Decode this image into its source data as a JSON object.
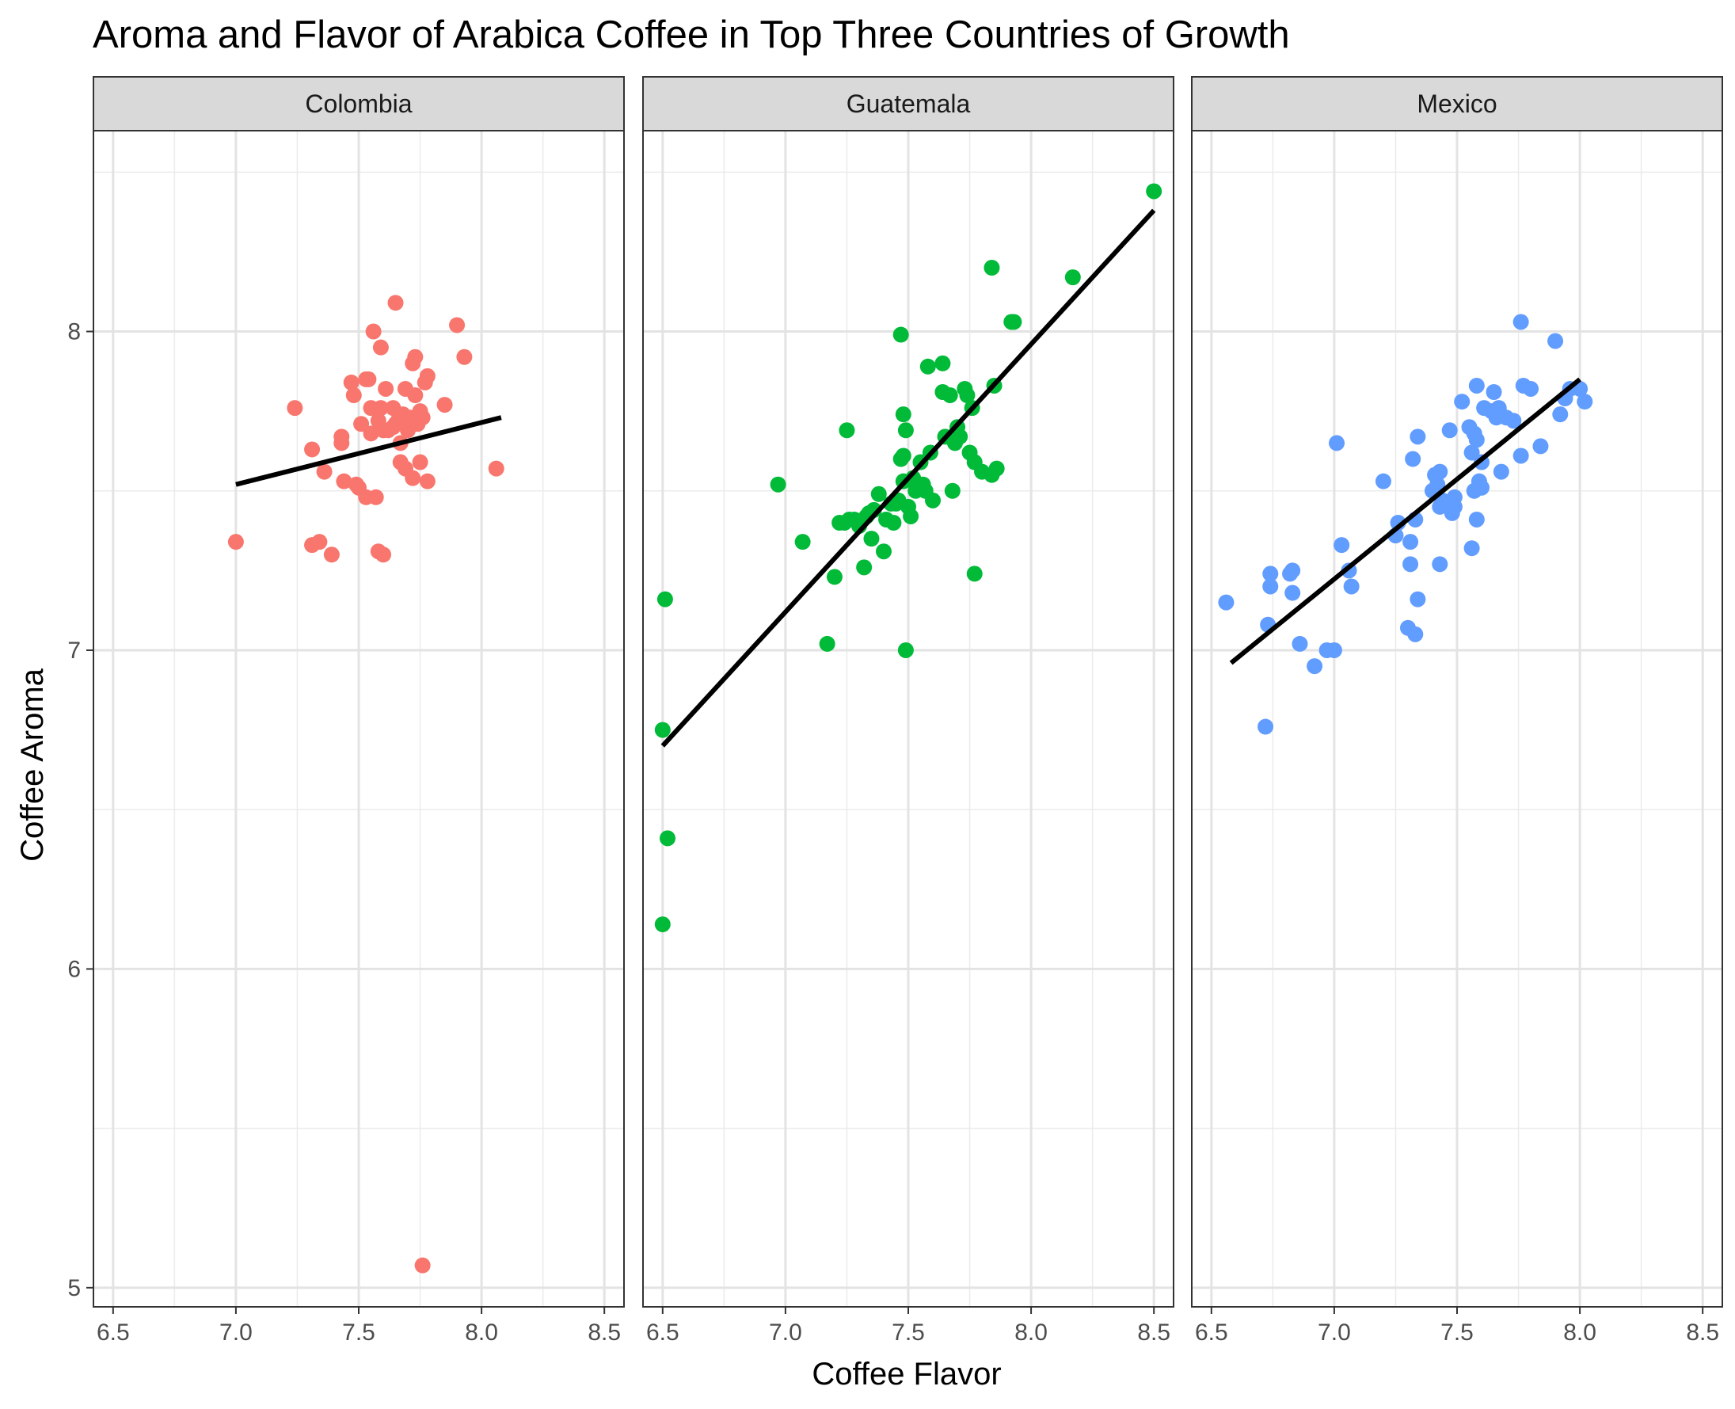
{
  "chart_data": {
    "type": "scatter",
    "title": "Aroma and Flavor of Arabica Coffee in Top Three Countries of Growth",
    "xlabel": "Coffee Flavor",
    "ylabel": "Coffee Aroma",
    "xlim": [
      6.42,
      8.58
    ],
    "ylim": [
      4.94,
      8.63
    ],
    "x_ticks": [
      "6.5",
      "7.0",
      "7.5",
      "8.0",
      "8.5"
    ],
    "y_ticks": [
      "5",
      "6",
      "7",
      "8"
    ],
    "grid": true,
    "legend": "none",
    "fit_line_color": "#000000",
    "facets": [
      {
        "name": "Colombia",
        "color": "#F8766D",
        "fit": {
          "x": [
            7.0,
            8.08
          ],
          "y": [
            7.52,
            7.73
          ]
        },
        "points": [
          [
            7.0,
            7.34
          ],
          [
            7.24,
            7.76
          ],
          [
            7.31,
            7.63
          ],
          [
            7.31,
            7.33
          ],
          [
            7.34,
            7.34
          ],
          [
            7.36,
            7.56
          ],
          [
            7.39,
            7.3
          ],
          [
            7.43,
            7.67
          ],
          [
            7.43,
            7.65
          ],
          [
            7.44,
            7.53
          ],
          [
            7.47,
            7.84
          ],
          [
            7.48,
            7.8
          ],
          [
            7.49,
            7.52
          ],
          [
            7.5,
            7.51
          ],
          [
            7.51,
            7.71
          ],
          [
            7.53,
            7.85
          ],
          [
            7.53,
            7.48
          ],
          [
            7.54,
            7.85
          ],
          [
            7.55,
            7.76
          ],
          [
            7.55,
            7.68
          ],
          [
            7.56,
            8.0
          ],
          [
            7.57,
            7.48
          ],
          [
            7.58,
            7.31
          ],
          [
            7.58,
            7.72
          ],
          [
            7.59,
            7.95
          ],
          [
            7.59,
            7.76
          ],
          [
            7.6,
            7.69
          ],
          [
            7.6,
            7.3
          ],
          [
            7.61,
            7.82
          ],
          [
            7.62,
            7.69
          ],
          [
            7.64,
            7.76
          ],
          [
            7.64,
            7.7
          ],
          [
            7.65,
            8.09
          ],
          [
            7.65,
            7.71
          ],
          [
            7.66,
            7.72
          ],
          [
            7.67,
            7.59
          ],
          [
            7.67,
            7.65
          ],
          [
            7.68,
            7.74
          ],
          [
            7.69,
            7.82
          ],
          [
            7.69,
            7.57
          ],
          [
            7.7,
            7.69
          ],
          [
            7.71,
            7.73
          ],
          [
            7.72,
            7.9
          ],
          [
            7.72,
            7.54
          ],
          [
            7.73,
            7.92
          ],
          [
            7.73,
            7.8
          ],
          [
            7.74,
            7.71
          ],
          [
            7.75,
            7.59
          ],
          [
            7.75,
            7.75
          ],
          [
            7.76,
            7.73
          ],
          [
            7.76,
            5.07
          ],
          [
            7.77,
            7.84
          ],
          [
            7.78,
            7.86
          ],
          [
            7.78,
            7.53
          ],
          [
            7.85,
            7.77
          ],
          [
            7.9,
            8.02
          ],
          [
            7.93,
            7.92
          ],
          [
            8.06,
            7.57
          ]
        ]
      },
      {
        "name": "Guatemala",
        "color": "#00BA38",
        "fit": {
          "x": [
            6.5,
            8.5
          ],
          "y": [
            6.7,
            8.38
          ]
        },
        "points": [
          [
            6.5,
            6.14
          ],
          [
            6.5,
            6.75
          ],
          [
            6.51,
            7.16
          ],
          [
            6.52,
            6.41
          ],
          [
            6.97,
            7.52
          ],
          [
            7.07,
            7.34
          ],
          [
            7.17,
            7.02
          ],
          [
            7.2,
            7.23
          ],
          [
            7.22,
            7.4
          ],
          [
            7.24,
            7.4
          ],
          [
            7.25,
            7.69
          ],
          [
            7.26,
            7.41
          ],
          [
            7.28,
            7.41
          ],
          [
            7.3,
            7.39
          ],
          [
            7.32,
            7.26
          ],
          [
            7.33,
            7.42
          ],
          [
            7.34,
            7.43
          ],
          [
            7.35,
            7.35
          ],
          [
            7.36,
            7.44
          ],
          [
            7.38,
            7.49
          ],
          [
            7.4,
            7.31
          ],
          [
            7.41,
            7.41
          ],
          [
            7.43,
            7.46
          ],
          [
            7.44,
            7.4
          ],
          [
            7.45,
            7.46
          ],
          [
            7.46,
            7.47
          ],
          [
            7.47,
            7.99
          ],
          [
            7.47,
            7.6
          ],
          [
            7.48,
            7.74
          ],
          [
            7.48,
            7.61
          ],
          [
            7.48,
            7.53
          ],
          [
            7.49,
            7.69
          ],
          [
            7.49,
            7.0
          ],
          [
            7.5,
            7.45
          ],
          [
            7.51,
            7.42
          ],
          [
            7.52,
            7.54
          ],
          [
            7.53,
            7.5
          ],
          [
            7.55,
            7.59
          ],
          [
            7.56,
            7.52
          ],
          [
            7.57,
            7.5
          ],
          [
            7.58,
            7.89
          ],
          [
            7.59,
            7.62
          ],
          [
            7.6,
            7.47
          ],
          [
            7.64,
            7.81
          ],
          [
            7.64,
            7.9
          ],
          [
            7.65,
            7.67
          ],
          [
            7.67,
            7.8
          ],
          [
            7.68,
            7.5
          ],
          [
            7.69,
            7.65
          ],
          [
            7.7,
            7.7
          ],
          [
            7.71,
            7.67
          ],
          [
            7.73,
            7.82
          ],
          [
            7.74,
            7.8
          ],
          [
            7.75,
            7.62
          ],
          [
            7.76,
            7.76
          ],
          [
            7.77,
            7.24
          ],
          [
            7.77,
            7.59
          ],
          [
            7.8,
            7.56
          ],
          [
            7.84,
            7.55
          ],
          [
            7.84,
            8.2
          ],
          [
            7.85,
            7.83
          ],
          [
            7.86,
            7.57
          ],
          [
            7.92,
            8.03
          ],
          [
            7.93,
            8.03
          ],
          [
            8.17,
            8.17
          ],
          [
            8.5,
            8.44
          ]
        ]
      },
      {
        "name": "Mexico",
        "color": "#619CFF",
        "fit": {
          "x": [
            6.58,
            8.0
          ],
          "y": [
            6.96,
            7.85
          ]
        },
        "points": [
          [
            6.56,
            7.15
          ],
          [
            6.72,
            6.76
          ],
          [
            6.73,
            7.08
          ],
          [
            6.74,
            7.2
          ],
          [
            6.74,
            7.24
          ],
          [
            6.82,
            7.24
          ],
          [
            6.83,
            7.25
          ],
          [
            6.83,
            7.18
          ],
          [
            6.86,
            7.02
          ],
          [
            6.92,
            6.95
          ],
          [
            6.97,
            7.0
          ],
          [
            7.0,
            7.0
          ],
          [
            7.01,
            7.65
          ],
          [
            7.03,
            7.33
          ],
          [
            7.06,
            7.25
          ],
          [
            7.07,
            7.2
          ],
          [
            7.2,
            7.53
          ],
          [
            7.25,
            7.36
          ],
          [
            7.26,
            7.4
          ],
          [
            7.3,
            7.07
          ],
          [
            7.31,
            7.34
          ],
          [
            7.31,
            7.27
          ],
          [
            7.32,
            7.6
          ],
          [
            7.33,
            7.41
          ],
          [
            7.33,
            7.05
          ],
          [
            7.34,
            7.67
          ],
          [
            7.34,
            7.16
          ],
          [
            7.4,
            7.5
          ],
          [
            7.41,
            7.55
          ],
          [
            7.42,
            7.52
          ],
          [
            7.43,
            7.56
          ],
          [
            7.43,
            7.45
          ],
          [
            7.43,
            7.27
          ],
          [
            7.44,
            7.47
          ],
          [
            7.46,
            7.46
          ],
          [
            7.47,
            7.69
          ],
          [
            7.48,
            7.43
          ],
          [
            7.49,
            7.48
          ],
          [
            7.49,
            7.45
          ],
          [
            7.52,
            7.78
          ],
          [
            7.55,
            7.7
          ],
          [
            7.56,
            7.62
          ],
          [
            7.56,
            7.32
          ],
          [
            7.57,
            7.68
          ],
          [
            7.57,
            7.5
          ],
          [
            7.58,
            7.83
          ],
          [
            7.58,
            7.66
          ],
          [
            7.58,
            7.41
          ],
          [
            7.59,
            7.53
          ],
          [
            7.6,
            7.59
          ],
          [
            7.6,
            7.51
          ],
          [
            7.61,
            7.76
          ],
          [
            7.64,
            7.75
          ],
          [
            7.65,
            7.81
          ],
          [
            7.66,
            7.73
          ],
          [
            7.67,
            7.76
          ],
          [
            7.68,
            7.56
          ],
          [
            7.7,
            7.73
          ],
          [
            7.73,
            7.72
          ],
          [
            7.76,
            7.61
          ],
          [
            7.76,
            8.03
          ],
          [
            7.77,
            7.83
          ],
          [
            7.8,
            7.82
          ],
          [
            7.84,
            7.64
          ],
          [
            7.9,
            7.97
          ],
          [
            7.92,
            7.74
          ],
          [
            7.94,
            7.79
          ],
          [
            7.96,
            7.82
          ],
          [
            8.0,
            7.82
          ],
          [
            8.02,
            7.78
          ]
        ]
      }
    ]
  }
}
